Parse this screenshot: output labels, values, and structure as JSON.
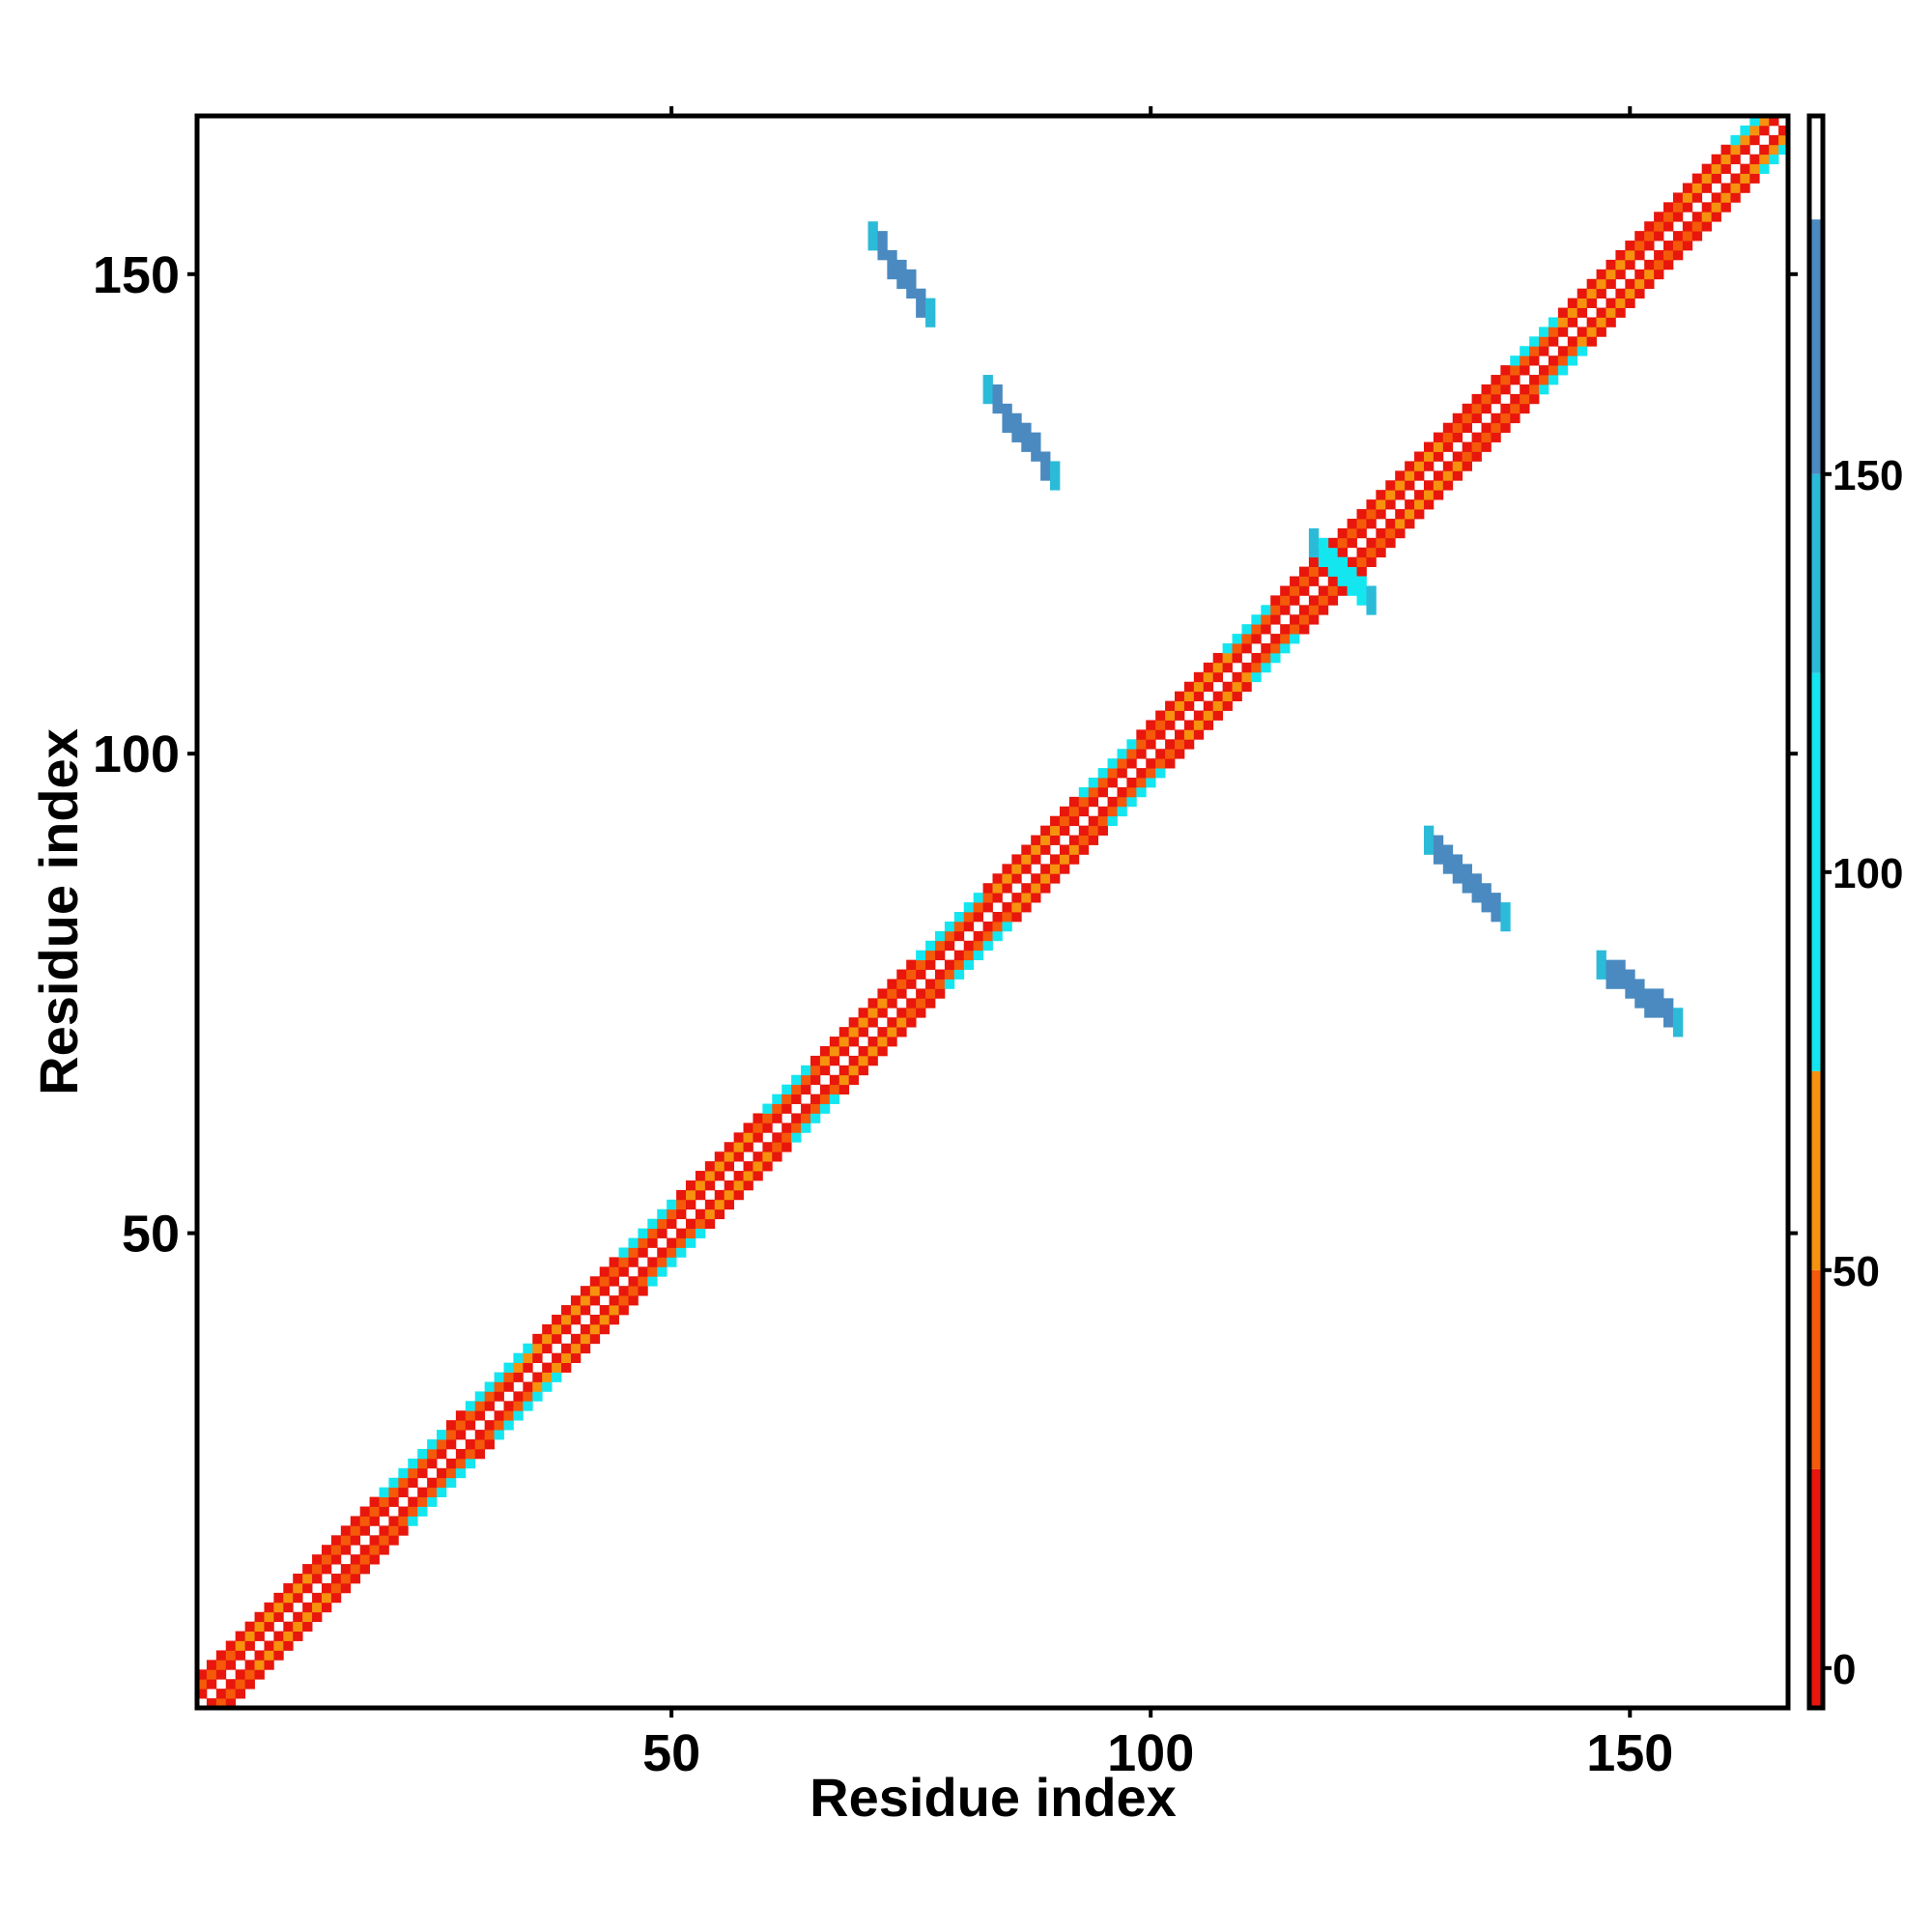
{
  "chart_data": {
    "type": "heatmap",
    "title": "",
    "xlabel": "Residue index",
    "ylabel": "Residue index",
    "xlim": [
      1,
      166
    ],
    "ylim": [
      1,
      166
    ],
    "x_ticks": [
      50,
      100,
      150
    ],
    "y_ticks": [
      50,
      100,
      150
    ],
    "x_tick_labels": [
      "50",
      "100",
      "150"
    ],
    "y_tick_labels": [
      "50",
      "100",
      "150"
    ],
    "colorbar": {
      "range": [
        -5,
        195
      ],
      "ticks": [
        0,
        50,
        100,
        150
      ],
      "tick_labels": [
        "0",
        "50",
        "100",
        "150"
      ],
      "bands": [
        {
          "from": -5,
          "to": 25,
          "color": "#e8160c"
        },
        {
          "from": 25,
          "to": 50,
          "color": "#f55a0a"
        },
        {
          "from": 50,
          "to": 75,
          "color": "#f7920e"
        },
        {
          "from": 75,
          "to": 125,
          "color": "#14e6f0"
        },
        {
          "from": 125,
          "to": 150,
          "color": "#2bbbd8"
        },
        {
          "from": 150,
          "to": 182,
          "color": "#4a8ac0"
        },
        {
          "from": 182,
          "to": 195,
          "color": "#ffffff"
        }
      ]
    },
    "diagonal": {
      "from": 1,
      "to": 166,
      "contact_offsets": [
        {
          "offset": 1,
          "value": 20
        },
        {
          "offset": 2,
          "value": 40
        },
        {
          "offset": 3,
          "value": 20
        }
      ],
      "helix_segments": [
        [
          5,
          12
        ],
        [
          34,
          42
        ],
        [
          52,
          58
        ],
        [
          66,
          72
        ],
        [
          84,
          90
        ],
        [
          102,
          108
        ],
        [
          124,
          130
        ],
        [
          143,
          150
        ],
        [
          156,
          164
        ]
      ],
      "strand_like_segments": [
        [
          20,
          26
        ],
        [
          29,
          35
        ],
        [
          45,
          50
        ],
        [
          60,
          64
        ],
        [
          76,
          82
        ],
        [
          93,
          98
        ],
        [
          108,
          112
        ],
        [
          138,
          142
        ],
        [
          161,
          164
        ]
      ]
    },
    "off_diagonal_patches": [
      {
        "x_range": [
          71,
          77
        ],
        "y_range": [
          146,
          154
        ],
        "value": 160
      },
      {
        "x_range": [
          83,
          90
        ],
        "y_range": [
          129,
          138
        ],
        "value": 160
      },
      {
        "x_range": [
          117,
          123
        ],
        "y_range": [
          116,
          122
        ],
        "value": 120
      },
      {
        "x_range": [
          129,
          137
        ],
        "y_range": [
          83,
          91
        ],
        "value": 160
      },
      {
        "x_range": [
          147,
          155
        ],
        "y_range": [
          72,
          78
        ],
        "value": 160
      }
    ]
  }
}
